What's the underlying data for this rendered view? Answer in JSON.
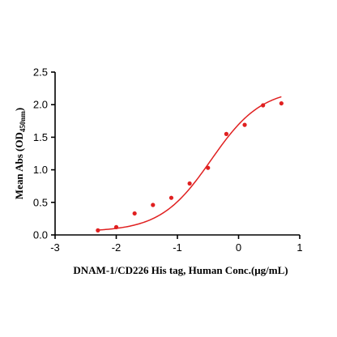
{
  "chart_data": {
    "type": "scatter",
    "title": "",
    "xlabel": "DNAM-1/CD226 His tag, Human  Conc.(μg/mL)",
    "ylabel_main": "Mean Abs (OD",
    "ylabel_sub": "450nm",
    "ylabel_end": ")",
    "xlim": [
      -3,
      1
    ],
    "ylim": [
      0,
      2.5
    ],
    "x_ticks": [
      -3,
      -2,
      -1,
      0,
      1
    ],
    "x_tick_labels": [
      "-3",
      "-2",
      "-1",
      "0",
      "1"
    ],
    "y_ticks": [
      0,
      0.5,
      1,
      1.5,
      2,
      2.5
    ],
    "y_tick_labels": [
      "0.0",
      "0.5",
      "1.0",
      "1.5",
      "2.0",
      "2.5"
    ],
    "grid": false,
    "series": [
      {
        "x": [
          -2.3,
          -2.0,
          -1.7,
          -1.4,
          -1.1,
          -0.8,
          -0.5,
          -0.2,
          0.1,
          0.4,
          0.7
        ],
        "y": [
          0.07,
          0.12,
          0.33,
          0.46,
          0.57,
          0.79,
          1.03,
          1.55,
          1.69,
          1.99,
          2.02
        ],
        "color": "#e02020",
        "fit": {
          "model": "4PL",
          "bottom": 0.05,
          "top": 2.25,
          "logEC50": -0.45,
          "hill": 1.05,
          "x_range": [
            -2.3,
            0.7
          ]
        }
      }
    ]
  }
}
